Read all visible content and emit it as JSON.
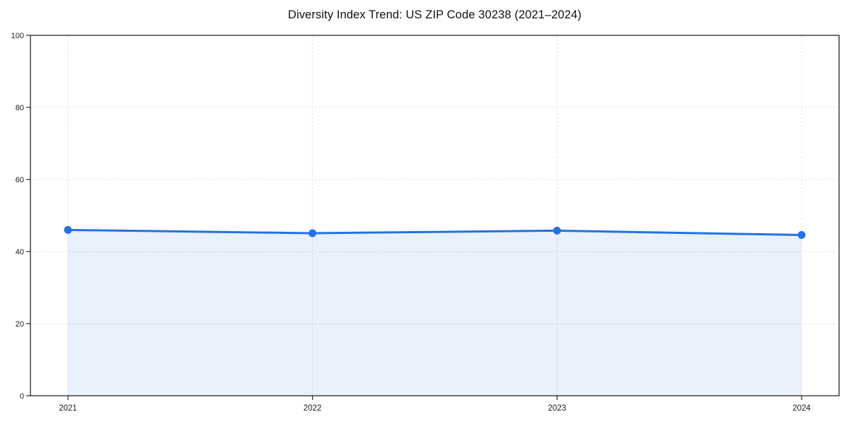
{
  "chart_data": {
    "type": "line",
    "title": "Diversity Index Trend: US ZIP Code 30238 (2021–2024)",
    "x": [
      2021,
      2022,
      2023,
      2024
    ],
    "series": [
      {
        "name": "Diversity Index",
        "values": [
          46.0,
          45.1,
          45.8,
          44.6
        ]
      }
    ],
    "xlabel": "",
    "ylabel": "",
    "ylim": [
      0,
      100
    ],
    "yticks": [
      0,
      20,
      40,
      60,
      80,
      100
    ],
    "xticks": [
      "2021",
      "2022",
      "2023",
      "2024"
    ],
    "grid": true,
    "grid_style": "dashed",
    "legend": false,
    "marker": "circle",
    "area_fill": true,
    "colors": {
      "line": "#2272e4",
      "marker": "#2272e4",
      "fill": "rgba(34,114,228,0.10)",
      "grid": "#e0e0e0",
      "spine": "#262626",
      "tick_text": "#1a1a1a",
      "background": "#ffffff"
    }
  }
}
